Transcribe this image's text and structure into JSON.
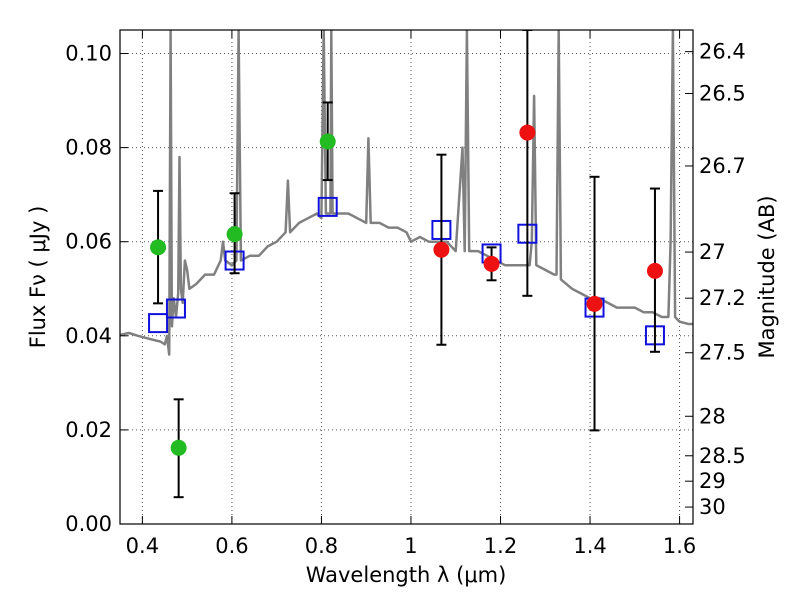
{
  "chart_data": {
    "type": "scatter",
    "title": "",
    "xlabel": "Wavelength  λ (μm)",
    "ylabel": "Flux  Fν  ( μJy )",
    "ylabel_right": "Magnitude (AB)",
    "xlim": [
      0.35,
      1.63
    ],
    "ylim": [
      0.0,
      0.105
    ],
    "grid": true,
    "x_ticks": [
      0.4,
      0.6,
      0.8,
      1.0,
      1.2,
      1.4,
      1.6
    ],
    "x_tick_labels": [
      "0.4",
      "0.6",
      "0.8",
      "1",
      "1.2",
      "1.4",
      "1.6"
    ],
    "y_ticks": [
      0.0,
      0.02,
      0.04,
      0.06,
      0.08,
      0.1
    ],
    "y_tick_labels": [
      "0.00",
      "0.02",
      "0.04",
      "0.06",
      "0.08",
      "0.10"
    ],
    "right_ticks": [
      {
        "label": "26.4",
        "flux": 0.1004
      },
      {
        "label": "26.5",
        "flux": 0.0915
      },
      {
        "label": "26.7",
        "flux": 0.0761
      },
      {
        "label": "27",
        "flux": 0.0578
      },
      {
        "label": "27.2",
        "flux": 0.048
      },
      {
        "label": "27.5",
        "flux": 0.0364
      },
      {
        "label": "28",
        "flux": 0.0229
      },
      {
        "label": "28.5",
        "flux": 0.0145
      },
      {
        "label": "29",
        "flux": 0.0091
      },
      {
        "label": "30",
        "flux": 0.0036
      }
    ],
    "series": [
      {
        "name": "green photometry",
        "color": "#22bb22",
        "marker": "circle",
        "points": [
          {
            "x": 0.435,
            "y": 0.0588,
            "err_low": 0.0469,
            "err_high": 0.0708
          },
          {
            "x": 0.481,
            "y": 0.0162,
            "err_low": 0.0057,
            "err_high": 0.0265
          },
          {
            "x": 0.606,
            "y": 0.0616,
            "err_low": 0.0533,
            "err_high": 0.0703
          },
          {
            "x": 0.814,
            "y": 0.0813,
            "err_low": 0.0731,
            "err_high": 0.0896
          }
        ]
      },
      {
        "name": "red photometry",
        "color": "#ee1111",
        "marker": "circle",
        "points": [
          {
            "x": 1.068,
            "y": 0.0583,
            "err_low": 0.0381,
            "err_high": 0.0785
          },
          {
            "x": 1.18,
            "y": 0.0553,
            "err_low": 0.0518,
            "err_high": 0.0588
          },
          {
            "x": 1.26,
            "y": 0.0832,
            "err_low": 0.0485,
            "err_high": 0.105
          },
          {
            "x": 1.41,
            "y": 0.0468,
            "err_low": 0.0199,
            "err_high": 0.0738
          },
          {
            "x": 1.545,
            "y": 0.0538,
            "err_low": 0.0366,
            "err_high": 0.0713
          }
        ]
      },
      {
        "name": "model synthetic photometry",
        "color": "#1111dd",
        "marker": "square",
        "points": [
          {
            "x": 0.435,
            "y": 0.0427
          },
          {
            "x": 0.475,
            "y": 0.0458
          },
          {
            "x": 0.606,
            "y": 0.056
          },
          {
            "x": 0.814,
            "y": 0.0674
          },
          {
            "x": 1.068,
            "y": 0.0625
          },
          {
            "x": 1.18,
            "y": 0.0575
          },
          {
            "x": 1.26,
            "y": 0.0617
          },
          {
            "x": 1.41,
            "y": 0.046
          },
          {
            "x": 1.545,
            "y": 0.0401
          }
        ]
      },
      {
        "name": "model spectrum",
        "color": "#808080",
        "marker": "line",
        "points": [
          [
            0.35,
            0.0402
          ],
          [
            0.37,
            0.0406
          ],
          [
            0.39,
            0.04
          ],
          [
            0.41,
            0.0395
          ],
          [
            0.43,
            0.039
          ],
          [
            0.44,
            0.0388
          ],
          [
            0.45,
            0.0382
          ],
          [
            0.455,
            0.04
          ],
          [
            0.46,
            0.036
          ],
          [
            0.463,
            0.105
          ],
          [
            0.466,
            0.042
          ],
          [
            0.47,
            0.048
          ],
          [
            0.475,
            0.044
          ],
          [
            0.48,
            0.049
          ],
          [
            0.483,
            0.078
          ],
          [
            0.486,
            0.05
          ],
          [
            0.49,
            0.047
          ],
          [
            0.495,
            0.056
          ],
          [
            0.5,
            0.054
          ],
          [
            0.505,
            0.05
          ],
          [
            0.52,
            0.051
          ],
          [
            0.54,
            0.053
          ],
          [
            0.56,
            0.053
          ],
          [
            0.575,
            0.056
          ],
          [
            0.58,
            0.06
          ],
          [
            0.585,
            0.056
          ],
          [
            0.6,
            0.055
          ],
          [
            0.61,
            0.056
          ],
          [
            0.615,
            0.105
          ],
          [
            0.62,
            0.056
          ],
          [
            0.64,
            0.057
          ],
          [
            0.66,
            0.057
          ],
          [
            0.68,
            0.059
          ],
          [
            0.7,
            0.06
          ],
          [
            0.72,
            0.062
          ],
          [
            0.725,
            0.073
          ],
          [
            0.73,
            0.062
          ],
          [
            0.75,
            0.064
          ],
          [
            0.77,
            0.065
          ],
          [
            0.79,
            0.066
          ],
          [
            0.8,
            0.065
          ],
          [
            0.805,
            0.105
          ],
          [
            0.81,
            0.066
          ],
          [
            0.82,
            0.066
          ],
          [
            0.822,
            0.105
          ],
          [
            0.825,
            0.066
          ],
          [
            0.84,
            0.066
          ],
          [
            0.86,
            0.066
          ],
          [
            0.88,
            0.065
          ],
          [
            0.9,
            0.064
          ],
          [
            0.905,
            0.082
          ],
          [
            0.91,
            0.064
          ],
          [
            0.93,
            0.064
          ],
          [
            0.95,
            0.063
          ],
          [
            0.97,
            0.063
          ],
          [
            0.99,
            0.062
          ],
          [
            1.0,
            0.06
          ],
          [
            1.02,
            0.061
          ],
          [
            1.04,
            0.06
          ],
          [
            1.06,
            0.06
          ],
          [
            1.08,
            0.06
          ],
          [
            1.1,
            0.058
          ],
          [
            1.115,
            0.08
          ],
          [
            1.12,
            0.058
          ],
          [
            1.125,
            0.105
          ],
          [
            1.13,
            0.058
          ],
          [
            1.15,
            0.058
          ],
          [
            1.17,
            0.057
          ],
          [
            1.19,
            0.056
          ],
          [
            1.21,
            0.055
          ],
          [
            1.23,
            0.055
          ],
          [
            1.25,
            0.055
          ],
          [
            1.265,
            0.055
          ],
          [
            1.27,
            0.06
          ],
          [
            1.275,
            0.091
          ],
          [
            1.28,
            0.055
          ],
          [
            1.3,
            0.054
          ],
          [
            1.32,
            0.053
          ],
          [
            1.325,
            0.053
          ],
          [
            1.33,
            0.105
          ],
          [
            1.335,
            0.052
          ],
          [
            1.36,
            0.05
          ],
          [
            1.38,
            0.049
          ],
          [
            1.4,
            0.048
          ],
          [
            1.42,
            0.048
          ],
          [
            1.44,
            0.047
          ],
          [
            1.46,
            0.046
          ],
          [
            1.48,
            0.046
          ],
          [
            1.5,
            0.046
          ],
          [
            1.52,
            0.045
          ],
          [
            1.54,
            0.045
          ],
          [
            1.56,
            0.044
          ],
          [
            1.575,
            0.044
          ],
          [
            1.58,
            0.06
          ],
          [
            1.585,
            0.105
          ],
          [
            1.59,
            0.044
          ],
          [
            1.6,
            0.043
          ],
          [
            1.62,
            0.0425
          ],
          [
            1.63,
            0.0425
          ]
        ]
      }
    ]
  }
}
